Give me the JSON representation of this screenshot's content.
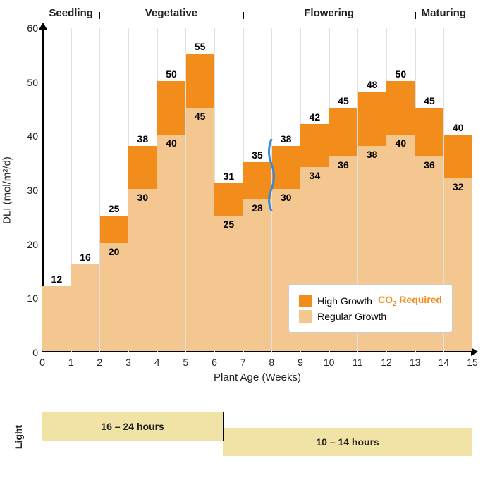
{
  "chart": {
    "type": "bar",
    "title": "",
    "xlabel": "Plant Age (Weeks)",
    "ylabel": "DLI (mol/m²/d)",
    "xlim": [
      0,
      15
    ],
    "ylim": [
      0,
      60
    ],
    "ytick_step": 10,
    "xtick_step": 1,
    "background_color": "#ffffff",
    "grid_color": "#e0e0e0",
    "axis_color": "#000000",
    "bar_width": 0.98,
    "colors": {
      "regular": "#f4c690",
      "high": "#f28c1b"
    },
    "stages": [
      {
        "label": "Seedling",
        "start": 0,
        "end": 2
      },
      {
        "label": "Vegetative",
        "start": 2,
        "end": 7
      },
      {
        "label": "Flowering",
        "start": 7,
        "end": 13
      },
      {
        "label": "Maturing",
        "start": 13,
        "end": 15
      }
    ],
    "bars": [
      {
        "week": 0,
        "regular": 12,
        "high": null,
        "reg_top_label": 12
      },
      {
        "week": 1,
        "regular": 16,
        "high": null,
        "reg_top_label": 16
      },
      {
        "week": 2,
        "regular": 20,
        "high": 25
      },
      {
        "week": 3,
        "regular": 30,
        "high": 38
      },
      {
        "week": 4,
        "regular": 40,
        "high": 50
      },
      {
        "week": 5,
        "regular": 45,
        "high": 55
      },
      {
        "week": 6,
        "regular": 25,
        "high": 31
      },
      {
        "week": 7,
        "regular": 28,
        "high": 35
      },
      {
        "week": 8,
        "regular": 30,
        "high": 38
      },
      {
        "week": 9,
        "regular": 34,
        "high": 42
      },
      {
        "week": 10,
        "regular": 36,
        "high": 45
      },
      {
        "week": 11,
        "regular": 38,
        "high": 48
      },
      {
        "week": 12,
        "regular": 40,
        "high": 50
      },
      {
        "week": 13,
        "regular": 36,
        "high": 45
      },
      {
        "week": 14,
        "regular": 32,
        "high": 40
      }
    ],
    "wave_divider": {
      "x": 8,
      "color": "#3a8ad4",
      "stroke_width": 3
    },
    "legend": {
      "items": [
        {
          "swatch": "#f28c1b",
          "label": "High Growth",
          "suffix": "CO₂ Required",
          "suffix_color": "#f28c1b"
        },
        {
          "swatch": "#f4c690",
          "label": "Regular Growth"
        }
      ]
    },
    "label_fontsize": 14,
    "axis_fontsize": 15,
    "stage_fontsize": 15
  },
  "light": {
    "label": "Light",
    "bars": [
      {
        "text": "16 – 24 hours",
        "start": 0,
        "end": 6.3,
        "top": 0,
        "color": "#f1e3a6"
      },
      {
        "text": "10 – 14 hours",
        "start": 6.3,
        "end": 15,
        "top": 22,
        "color": "#f1e3a6"
      }
    ],
    "divider_x": 6.3
  }
}
